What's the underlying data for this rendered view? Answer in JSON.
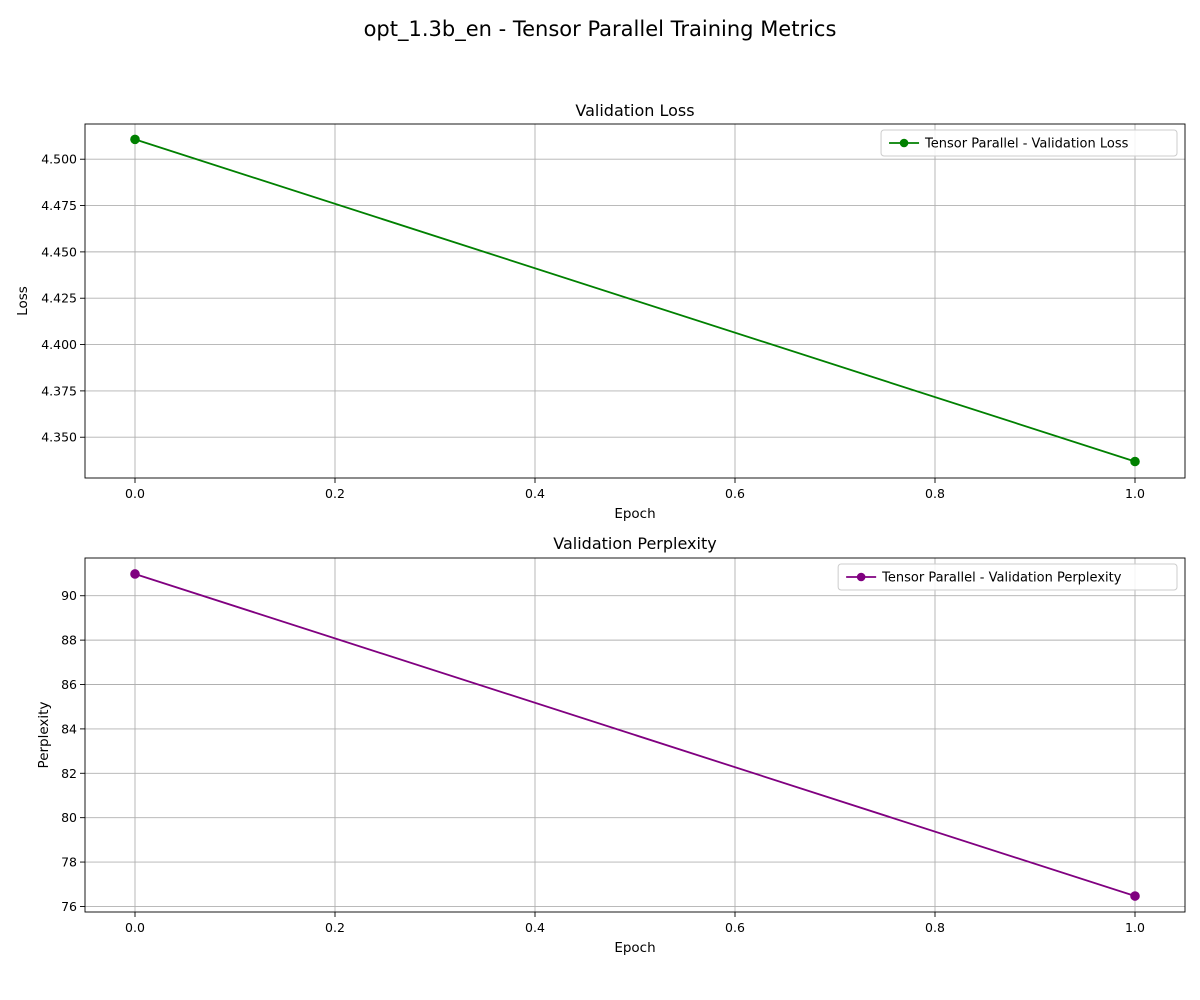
{
  "figure": {
    "title": "opt_1.3b_en - Tensor Parallel Training Metrics"
  },
  "chart_data": [
    {
      "type": "line",
      "title": "Validation Loss",
      "xlabel": "Epoch",
      "ylabel": "Loss",
      "x": [
        0.0,
        1.0
      ],
      "series": [
        {
          "name": "Tensor Parallel - Validation Loss",
          "color": "#008000",
          "marker": "circle",
          "values": [
            4.5107,
            4.3369
          ]
        }
      ],
      "xlim": [
        -0.05,
        1.05
      ],
      "ylim": [
        4.328,
        4.519
      ],
      "xticks": [
        0.0,
        0.2,
        0.4,
        0.6,
        0.8,
        1.0
      ],
      "xtick_labels": [
        "0.0",
        "0.2",
        "0.4",
        "0.6",
        "0.8",
        "1.0"
      ],
      "yticks": [
        4.35,
        4.375,
        4.4,
        4.425,
        4.45,
        4.475,
        4.5
      ],
      "ytick_labels": [
        "4.350",
        "4.375",
        "4.400",
        "4.425",
        "4.450",
        "4.475",
        "4.500"
      ],
      "grid": true,
      "legend_position": "upper right"
    },
    {
      "type": "line",
      "title": "Validation Perplexity",
      "xlabel": "Epoch",
      "ylabel": "Perplexity",
      "x": [
        0.0,
        1.0
      ],
      "series": [
        {
          "name": "Tensor Parallel - Validation Perplexity",
          "color": "#800080",
          "marker": "circle",
          "values": [
            90.98,
            76.47
          ]
        }
      ],
      "xlim": [
        -0.05,
        1.05
      ],
      "ylim": [
        75.75,
        91.7
      ],
      "xticks": [
        0.0,
        0.2,
        0.4,
        0.6,
        0.8,
        1.0
      ],
      "xtick_labels": [
        "0.0",
        "0.2",
        "0.4",
        "0.6",
        "0.8",
        "1.0"
      ],
      "yticks": [
        76,
        78,
        80,
        82,
        84,
        86,
        88,
        90
      ],
      "ytick_labels": [
        "76",
        "78",
        "80",
        "82",
        "84",
        "86",
        "88",
        "90"
      ],
      "grid": true,
      "legend_position": "upper right"
    }
  ]
}
